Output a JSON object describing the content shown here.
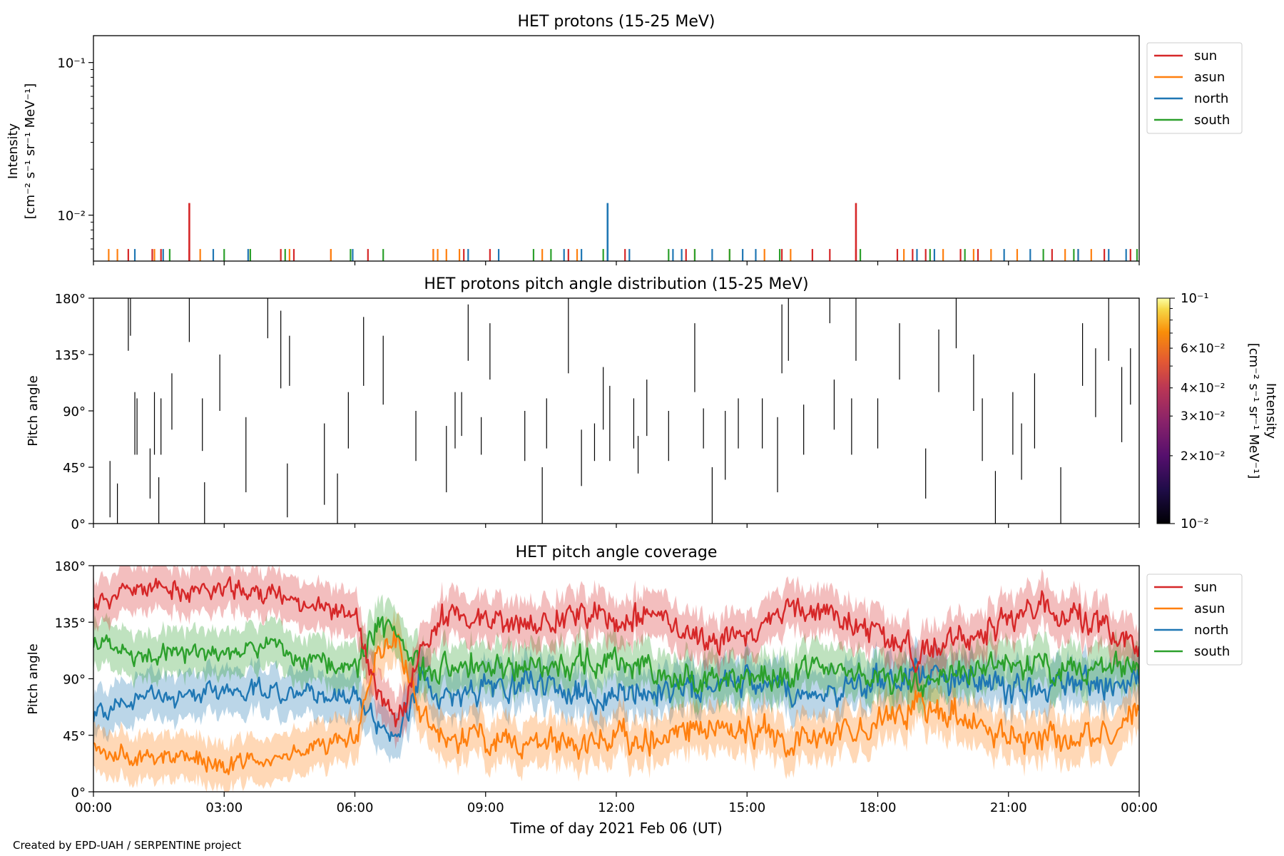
{
  "figure": {
    "credit": "Created by EPD-UAH / SERPENTINE project",
    "xlabel": "Time of day 2021 Feb 06 (UT)",
    "xticks": [
      "00:00",
      "03:00",
      "06:00",
      "09:00",
      "12:00",
      "15:00",
      "18:00",
      "21:00",
      "00:00"
    ]
  },
  "colors": {
    "sun": "#d62728",
    "asun": "#ff7f0e",
    "north": "#1f77b4",
    "south": "#2ca02c"
  },
  "chart_data": [
    {
      "type": "bar",
      "title": "HET protons (15-25 MeV)",
      "ylabel_line1": "Intensity",
      "ylabel_line2": "[cm⁻² s⁻¹ sr⁻¹ MeV⁻¹]",
      "yscale": "log",
      "ylim": [
        0.005,
        0.15
      ],
      "yticks": [
        "10⁻¹",
        "10⁻²"
      ],
      "xlim_hours": [
        0,
        24
      ],
      "legend": {
        "placement": "outside-right",
        "labels": [
          "sun",
          "asun",
          "north",
          "south"
        ]
      },
      "baseline": 0.005,
      "spikes": [
        {
          "series": "sun",
          "t": 2.2,
          "v": 0.012
        },
        {
          "series": "north",
          "t": 11.8,
          "v": 0.012
        },
        {
          "series": "sun",
          "t": 17.5,
          "v": 0.012
        }
      ],
      "small_value": 0.006,
      "small_events": {
        "sun": [
          0.8,
          1.35,
          1.55,
          2.2,
          4.3,
          4.6,
          5.45,
          6.3,
          7.8,
          8.5,
          9.1,
          10.9,
          12.2,
          13.6,
          15.8,
          16.5,
          16.9,
          17.5,
          18.45,
          18.8,
          19.1,
          19.9,
          20.3,
          22.0,
          22.6,
          23.2,
          23.8
        ],
        "asun": [
          0.35,
          0.55,
          1.4,
          2.45,
          3.6,
          4.5,
          5.45,
          7.8,
          7.9,
          8.1,
          8.4,
          10.3,
          11.1,
          13.8,
          14.6,
          15.4,
          16.0,
          18.6,
          19.5,
          20.2,
          20.6,
          21.2,
          22.3,
          22.9
        ],
        "north": [
          0.95,
          1.6,
          2.75,
          3.55,
          5.95,
          8.6,
          9.3,
          10.8,
          11.2,
          11.8,
          12.3,
          13.3,
          13.5,
          14.2,
          14.9,
          15.2,
          18.9,
          19.3,
          20.9,
          21.5,
          22.6,
          23.3,
          23.7
        ],
        "south": [
          1.75,
          3.0,
          3.6,
          4.4,
          5.9,
          6.65,
          10.1,
          10.5,
          11.7,
          13.2,
          13.8,
          14.6,
          15.75,
          17.6,
          19.2,
          20.0,
          21.8,
          22.5,
          23.95
        ]
      }
    },
    {
      "type": "heatmap",
      "title": "HET protons pitch angle distribution (15-25 MeV)",
      "ylabel": "Pitch angle",
      "ylim": [
        0,
        180
      ],
      "yticks": [
        "0°",
        "45°",
        "90°",
        "135°",
        "180°"
      ],
      "xlim_hours": [
        0,
        24
      ],
      "colorbar": {
        "label_line1": "Intensity",
        "label_line2": "[cm⁻² s⁻¹ sr⁻¹ MeV⁻¹]",
        "scale": "log",
        "range": [
          0.01,
          0.1
        ],
        "colormap": "inferno",
        "ticks": [
          {
            "value": 0.1,
            "label": "10⁻¹",
            "major": true
          },
          {
            "value": 0.06,
            "label": "6×10⁻²",
            "major": false
          },
          {
            "value": 0.04,
            "label": "4×10⁻²",
            "major": false
          },
          {
            "value": 0.03,
            "label": "3×10⁻²",
            "major": false
          },
          {
            "value": 0.02,
            "label": "2×10⁻²",
            "major": false
          },
          {
            "value": 0.01,
            "label": "10⁻²",
            "major": true
          }
        ]
      },
      "segments": [
        [
          0.38,
          5,
          50
        ],
        [
          0.55,
          0,
          32
        ],
        [
          0.8,
          138,
          180
        ],
        [
          0.85,
          150,
          180
        ],
        [
          0.95,
          55,
          105
        ],
        [
          1.0,
          55,
          100
        ],
        [
          1.3,
          20,
          60
        ],
        [
          1.4,
          55,
          105
        ],
        [
          1.5,
          0,
          37
        ],
        [
          1.55,
          55,
          100
        ],
        [
          1.8,
          75,
          120
        ],
        [
          2.2,
          145,
          180
        ],
        [
          2.5,
          58,
          100
        ],
        [
          2.55,
          0,
          33
        ],
        [
          2.9,
          90,
          135
        ],
        [
          3.5,
          25,
          85
        ],
        [
          4.0,
          148,
          180
        ],
        [
          4.3,
          108,
          170
        ],
        [
          4.45,
          5,
          48
        ],
        [
          4.5,
          110,
          150
        ],
        [
          5.3,
          15,
          80
        ],
        [
          5.6,
          0,
          40
        ],
        [
          5.85,
          60,
          105
        ],
        [
          6.2,
          110,
          165
        ],
        [
          6.65,
          95,
          150
        ],
        [
          7.4,
          50,
          90
        ],
        [
          8.1,
          25,
          78
        ],
        [
          8.3,
          60,
          105
        ],
        [
          8.45,
          70,
          105
        ],
        [
          8.6,
          130,
          175
        ],
        [
          8.9,
          55,
          85
        ],
        [
          9.1,
          115,
          160
        ],
        [
          9.9,
          50,
          90
        ],
        [
          10.3,
          0,
          45
        ],
        [
          10.4,
          60,
          100
        ],
        [
          10.9,
          120,
          180
        ],
        [
          11.2,
          30,
          75
        ],
        [
          11.5,
          50,
          80
        ],
        [
          11.7,
          75,
          125
        ],
        [
          11.85,
          50,
          110
        ],
        [
          12.4,
          60,
          100
        ],
        [
          12.5,
          40,
          70
        ],
        [
          12.7,
          70,
          115
        ],
        [
          13.2,
          50,
          90
        ],
        [
          13.8,
          105,
          160
        ],
        [
          14.0,
          60,
          92
        ],
        [
          14.2,
          0,
          45
        ],
        [
          14.5,
          35,
          90
        ],
        [
          14.8,
          60,
          100
        ],
        [
          15.35,
          60,
          100
        ],
        [
          15.7,
          25,
          85
        ],
        [
          15.8,
          120,
          175
        ],
        [
          15.95,
          130,
          180
        ],
        [
          16.3,
          55,
          95
        ],
        [
          16.9,
          160,
          180
        ],
        [
          17.0,
          75,
          115
        ],
        [
          17.4,
          55,
          100
        ],
        [
          17.5,
          130,
          180
        ],
        [
          18.0,
          60,
          100
        ],
        [
          18.5,
          115,
          160
        ],
        [
          19.1,
          20,
          60
        ],
        [
          19.4,
          105,
          155
        ],
        [
          19.8,
          140,
          180
        ],
        [
          20.2,
          90,
          135
        ],
        [
          20.4,
          50,
          100
        ],
        [
          20.7,
          0,
          42
        ],
        [
          21.1,
          55,
          105
        ],
        [
          21.3,
          35,
          80
        ],
        [
          21.6,
          60,
          120
        ],
        [
          22.2,
          0,
          45
        ],
        [
          22.7,
          110,
          160
        ],
        [
          23.0,
          85,
          140
        ],
        [
          23.3,
          130,
          180
        ],
        [
          23.6,
          65,
          125
        ],
        [
          23.8,
          95,
          140
        ]
      ]
    },
    {
      "type": "line",
      "title": "HET pitch angle coverage",
      "ylabel": "Pitch angle",
      "ylim": [
        0,
        180
      ],
      "yticks": [
        "0°",
        "45°",
        "90°",
        "135°",
        "180°"
      ],
      "xlim_hours": [
        0,
        24
      ],
      "legend": {
        "placement": "outside-right",
        "labels": [
          "sun",
          "asun",
          "north",
          "south"
        ]
      },
      "shaded_band_half_width_deg": 18,
      "series": [
        {
          "name": "sun",
          "key": "sun",
          "anchor_hours": [
            0,
            1,
            2,
            3,
            4,
            5,
            6,
            6.5,
            7,
            7.5,
            8,
            9,
            10,
            11,
            12,
            13,
            14,
            15,
            16,
            17,
            18,
            19,
            20,
            21,
            22,
            23,
            24
          ],
          "anchor_values": [
            150,
            162,
            160,
            162,
            158,
            150,
            140,
            75,
            55,
            110,
            140,
            135,
            130,
            145,
            135,
            140,
            120,
            125,
            145,
            140,
            125,
            110,
            120,
            140,
            145,
            135,
            115
          ]
        },
        {
          "name": "asun",
          "key": "asun",
          "anchor_hours": [
            0,
            1,
            2,
            3,
            4,
            5,
            6,
            6.5,
            7,
            7.5,
            8,
            9,
            10,
            11,
            12,
            13,
            14,
            15,
            16,
            17,
            18,
            19,
            20,
            21,
            22,
            23,
            24
          ],
          "anchor_values": [
            35,
            28,
            25,
            22,
            25,
            35,
            45,
            110,
            120,
            60,
            40,
            40,
            40,
            35,
            45,
            40,
            55,
            50,
            40,
            45,
            60,
            70,
            60,
            45,
            40,
            45,
            60
          ]
        },
        {
          "name": "north",
          "key": "north",
          "anchor_hours": [
            0,
            1,
            2,
            3,
            4,
            5,
            6,
            6.5,
            7,
            7.5,
            8,
            9,
            10,
            11,
            12,
            13,
            14,
            15,
            16,
            17,
            18,
            19,
            20,
            21,
            22,
            23,
            24
          ],
          "anchor_values": [
            60,
            75,
            78,
            82,
            80,
            80,
            75,
            55,
            50,
            90,
            75,
            80,
            85,
            80,
            75,
            80,
            85,
            90,
            80,
            80,
            90,
            95,
            90,
            80,
            85,
            85,
            85
          ]
        },
        {
          "name": "south",
          "key": "south",
          "anchor_hours": [
            0,
            1,
            2,
            3,
            4,
            5,
            6,
            6.5,
            7,
            7.5,
            8,
            9,
            10,
            11,
            12,
            13,
            14,
            15,
            16,
            17,
            18,
            19,
            20,
            21,
            22,
            23,
            24
          ],
          "anchor_values": [
            120,
            105,
            110,
            110,
            115,
            105,
            100,
            130,
            125,
            95,
            100,
            100,
            100,
            100,
            105,
            95,
            90,
            85,
            95,
            100,
            90,
            90,
            95,
            100,
            95,
            100,
            95
          ]
        }
      ]
    }
  ]
}
